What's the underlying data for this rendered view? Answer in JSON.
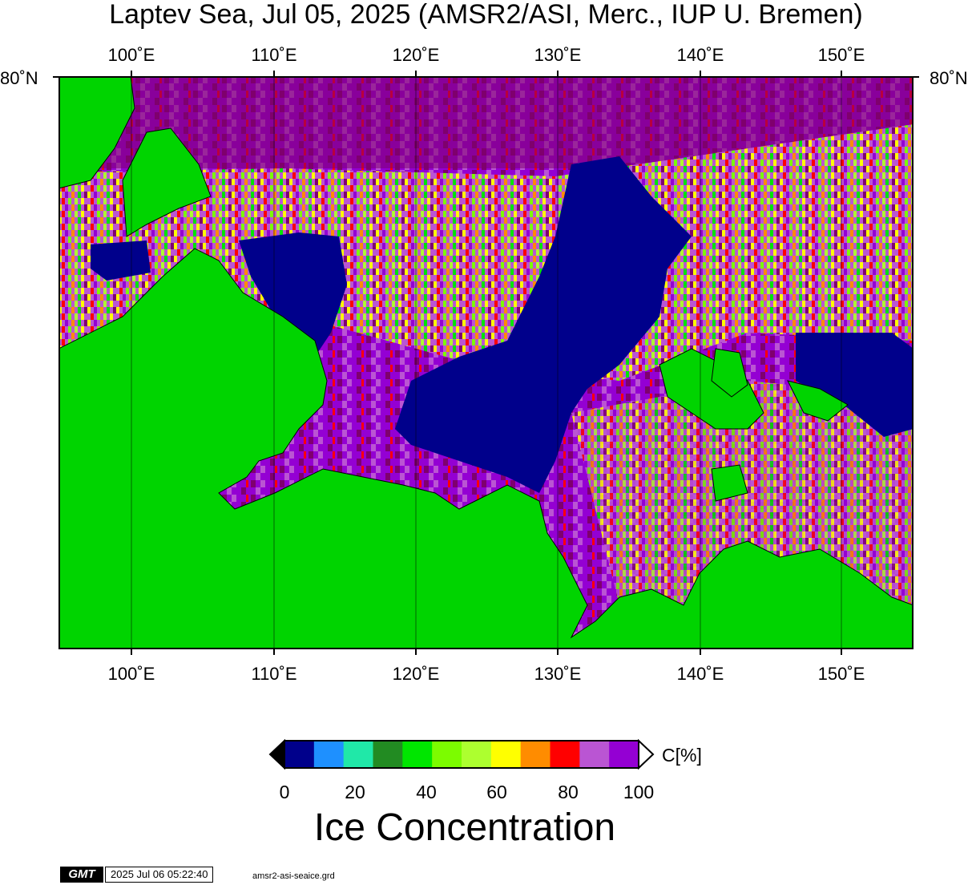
{
  "title": "Laptev Sea, Jul 05, 2025 (AMSR2/ASI, Merc., IUP U. Bremen)",
  "lon_ticks": [
    "100˚E",
    "110˚E",
    "120˚E",
    "130˚E",
    "140˚E",
    "150˚E"
  ],
  "lat_tick": "80˚N",
  "colorbar": {
    "unit_label": "C[%]",
    "tick_labels": [
      "0",
      "20",
      "40",
      "60",
      "80",
      "100"
    ],
    "colors": [
      "#00008b",
      "#1e90ff",
      "#20e8a8",
      "#228b22",
      "#00e600",
      "#7cfc00",
      "#adff2f",
      "#ffff00",
      "#ff8c00",
      "#ff0000",
      "#ba55d3",
      "#9400d3"
    ],
    "land_color": "#00d400",
    "overflow_color": "#000000"
  },
  "legend_title": "Ice Concentration",
  "footer": {
    "logo": "GMT",
    "timestamp": "2025 Jul 06 05:22:40",
    "grid_file": "amsr2-asi-seaice.grd"
  }
}
